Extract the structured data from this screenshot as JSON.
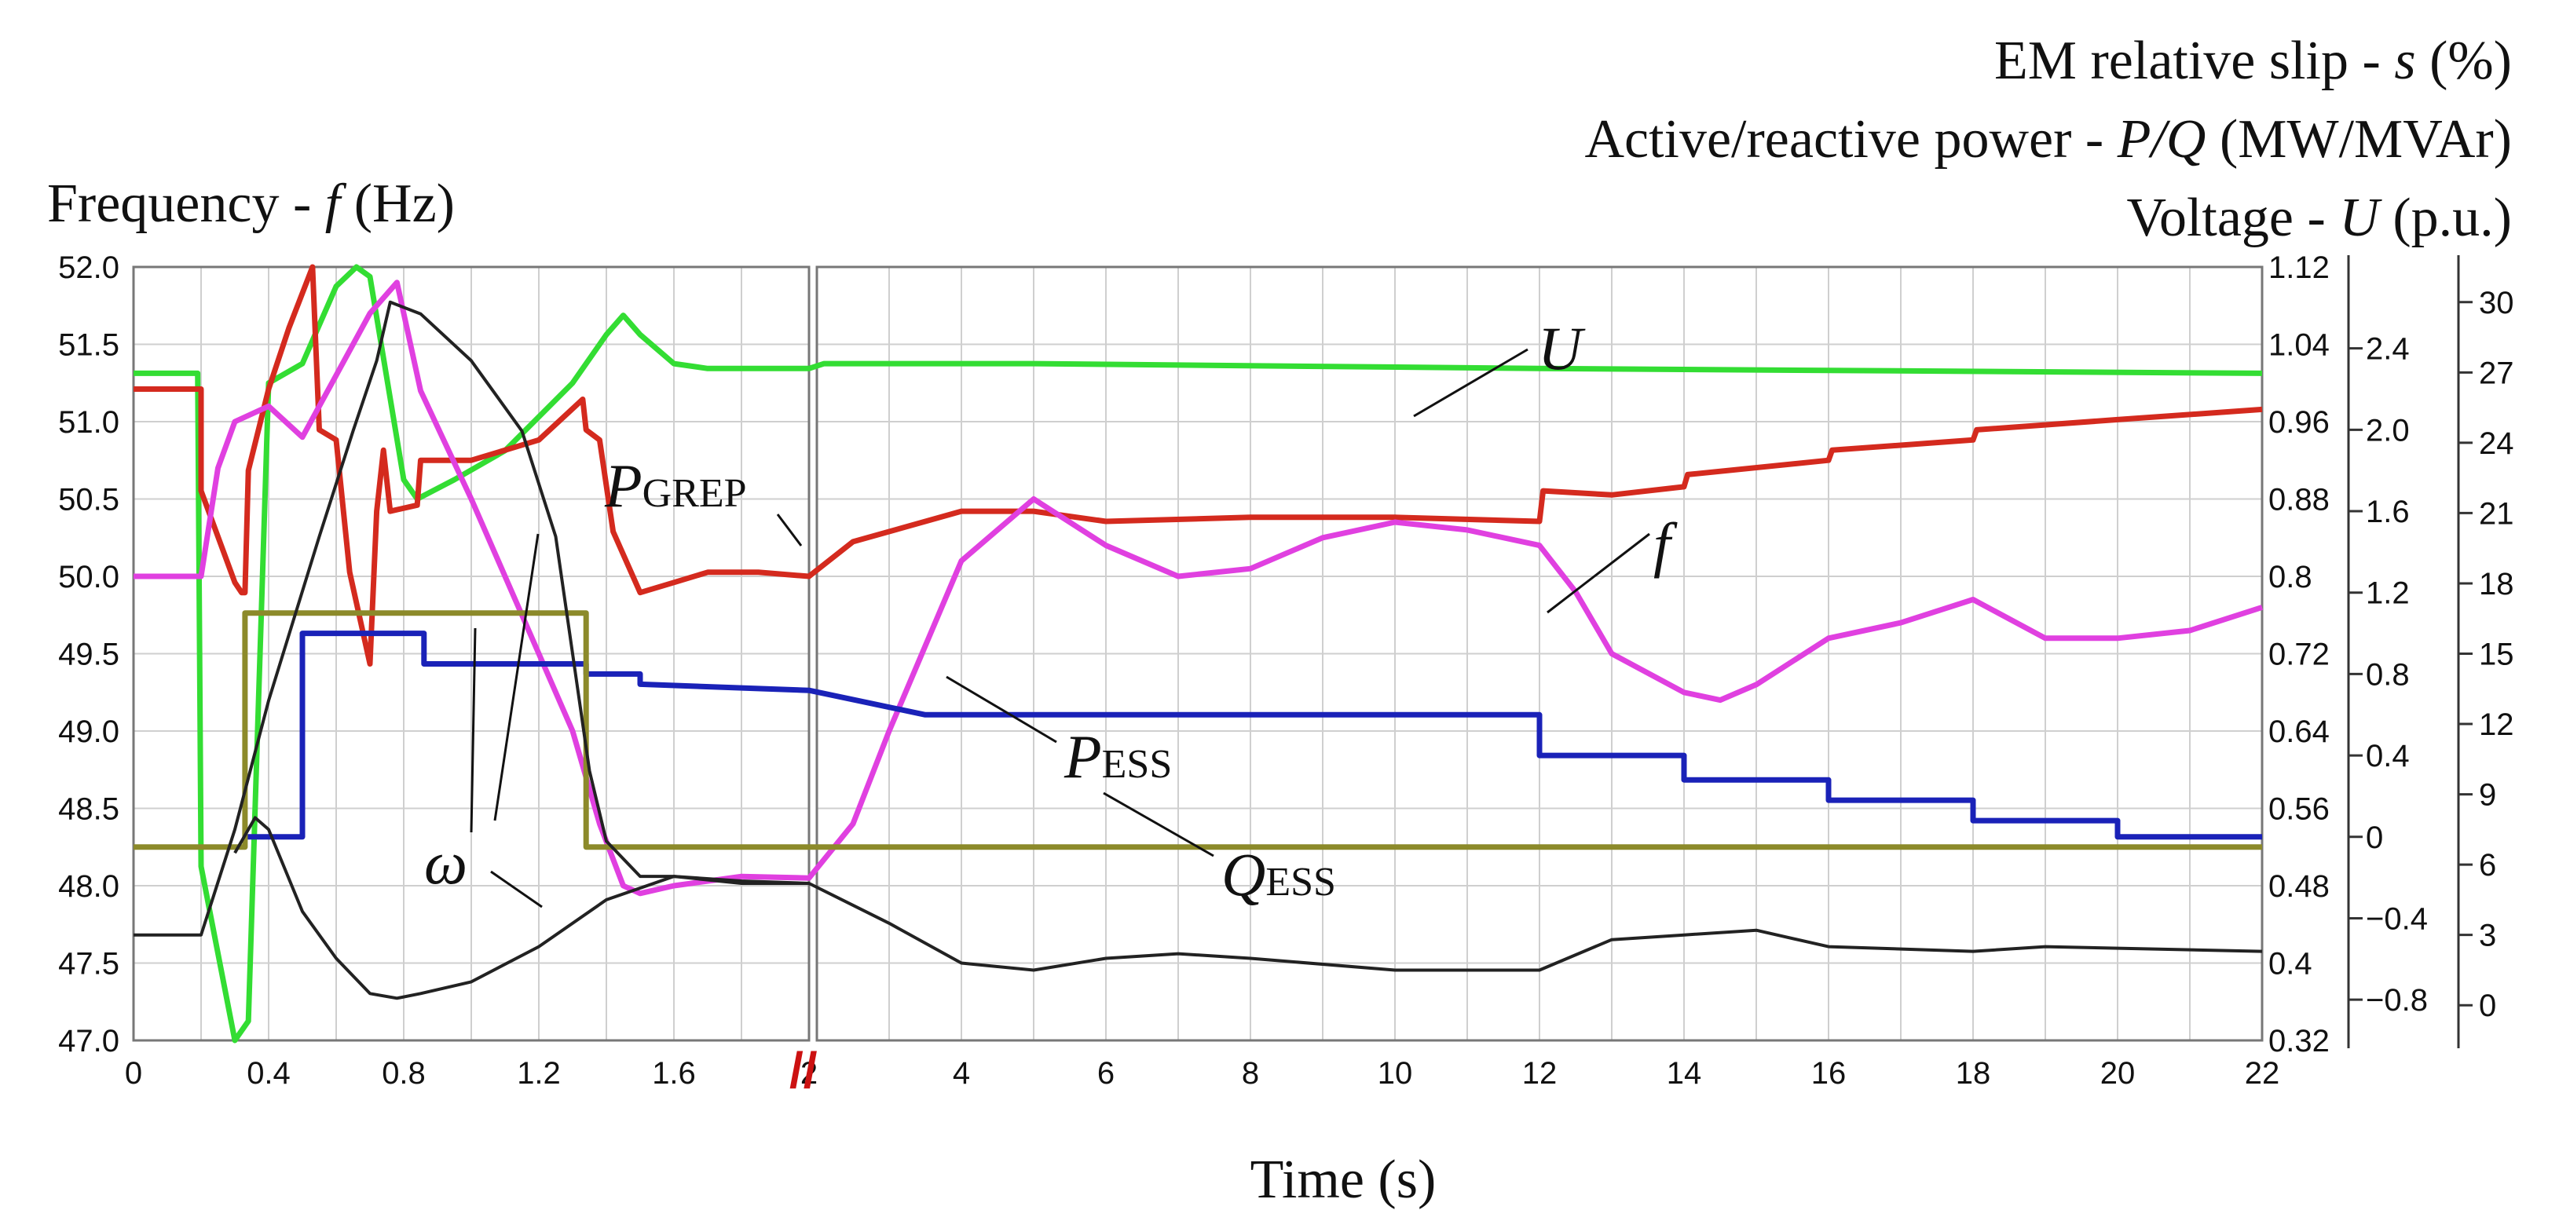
{
  "titles": {
    "slip": {
      "prefix": "EM relative slip - ",
      "symbol": "s",
      "unit": " (%)"
    },
    "power": {
      "prefix": "Active/reactive power - ",
      "symbol": "P/Q",
      "unit": " (MW/MVAr)"
    },
    "voltage": {
      "prefix": "Voltage - ",
      "symbol": "U",
      "unit": " (p.u.)"
    },
    "frequency": {
      "prefix": "Frequency - ",
      "symbol": "f",
      "unit": " (Hz)"
    }
  },
  "xlabel": "Time (s)",
  "annotations": {
    "U": "U",
    "f": "f",
    "omega": "ω",
    "PGREP": {
      "main": "P",
      "sub": "GREP"
    },
    "PESS": {
      "main": "P",
      "sub": "ESS"
    },
    "QESS": {
      "main": "Q",
      "sub": "ESS"
    }
  },
  "colors": {
    "U": "#33dd33",
    "PGREP": "#d42a1e",
    "f": "#e040e0",
    "PESS": "#1a22b8",
    "QESS": "#8c8a2a",
    "omega": "#222222",
    "break_mark": "#cc1111",
    "grid": "#cfcfcf"
  },
  "chart_data": {
    "type": "line",
    "x_axis": {
      "label": "Time (s)",
      "segment1": {
        "range": [
          0,
          2
        ],
        "ticks": [
          "0",
          "0.4",
          "0.8",
          "1.2",
          "1.6"
        ]
      },
      "segment2": {
        "range": [
          2,
          22
        ],
        "ticks": [
          "2",
          "4",
          "6",
          "8",
          "10",
          "12",
          "14",
          "16",
          "18",
          "20",
          "22"
        ]
      },
      "break_mark": "//"
    },
    "y_axes": {
      "frequency": {
        "label": "Frequency - f (Hz)",
        "range": [
          47.0,
          52.0
        ],
        "ticks": [
          "52.0",
          "51.5",
          "51.0",
          "50.5",
          "50.0",
          "49.5",
          "49.0",
          "48.5",
          "48.0",
          "47.5",
          "47.0"
        ]
      },
      "voltage": {
        "label": "Voltage - U (p.u.)",
        "range": [
          0.32,
          1.12
        ],
        "ticks": [
          "1.12",
          "1.04",
          "0.96",
          "0.88",
          "0.8",
          "0.72",
          "0.64",
          "0.56",
          "0.48",
          "0.4",
          "0.32"
        ]
      },
      "power": {
        "label": "Active/reactive power - P/Q (MW/MVAr)",
        "range": [
          -1.0,
          2.8
        ],
        "ticks": [
          "2.4",
          "2.0",
          "1.6",
          "1.2",
          "0.8",
          "0.4",
          "0",
          "−0.4",
          "−0.8"
        ]
      },
      "slip": {
        "label": "EM relative slip - s (%)",
        "range": [
          -1.5,
          31.5
        ],
        "ticks": [
          "30",
          "27",
          "24",
          "21",
          "18",
          "15",
          "12",
          "9",
          "6",
          "3",
          "0"
        ]
      }
    },
    "series": [
      {
        "name": "U",
        "axis": "voltage",
        "points": [
          [
            0,
            1.01
          ],
          [
            0.19,
            1.01
          ],
          [
            0.2,
            0.5
          ],
          [
            0.3,
            0.32
          ],
          [
            0.34,
            0.34
          ],
          [
            0.4,
            1.0
          ],
          [
            0.5,
            1.02
          ],
          [
            0.6,
            1.1
          ],
          [
            0.66,
            1.12
          ],
          [
            0.7,
            1.11
          ],
          [
            0.8,
            0.9
          ],
          [
            0.84,
            0.88
          ],
          [
            0.95,
            0.9
          ],
          [
            1.1,
            0.93
          ],
          [
            1.3,
            1.0
          ],
          [
            1.4,
            1.05
          ],
          [
            1.45,
            1.07
          ],
          [
            1.5,
            1.05
          ],
          [
            1.6,
            1.02
          ],
          [
            1.7,
            1.015
          ],
          [
            1.8,
            1.015
          ],
          [
            2,
            1.015
          ],
          [
            2.1,
            1.02
          ],
          [
            5,
            1.02
          ],
          [
            12,
            1.015
          ],
          [
            22,
            1.01
          ]
        ]
      },
      {
        "name": "PGREP",
        "axis": "power",
        "points": [
          [
            0,
            2.2
          ],
          [
            0.2,
            2.2
          ],
          [
            0.2,
            1.7
          ],
          [
            0.3,
            1.25
          ],
          [
            0.32,
            1.2
          ],
          [
            0.33,
            1.2
          ],
          [
            0.34,
            1.8
          ],
          [
            0.4,
            2.2
          ],
          [
            0.46,
            2.5
          ],
          [
            0.53,
            2.8
          ],
          [
            0.55,
            2.0
          ],
          [
            0.6,
            1.95
          ],
          [
            0.64,
            1.3
          ],
          [
            0.7,
            0.85
          ],
          [
            0.72,
            1.6
          ],
          [
            0.74,
            1.9
          ],
          [
            0.76,
            1.6
          ],
          [
            0.84,
            1.63
          ],
          [
            0.85,
            1.85
          ],
          [
            1.0,
            1.85
          ],
          [
            1.2,
            1.95
          ],
          [
            1.33,
            2.15
          ],
          [
            1.34,
            2.0
          ],
          [
            1.38,
            1.95
          ],
          [
            1.42,
            1.5
          ],
          [
            1.5,
            1.2
          ],
          [
            1.6,
            1.25
          ],
          [
            1.7,
            1.3
          ],
          [
            1.85,
            1.3
          ],
          [
            2.0,
            1.28
          ],
          [
            2.5,
            1.45
          ],
          [
            4,
            1.6
          ],
          [
            5,
            1.6
          ],
          [
            6,
            1.55
          ],
          [
            8,
            1.57
          ],
          [
            10,
            1.57
          ],
          [
            12,
            1.55
          ],
          [
            12.05,
            1.7
          ],
          [
            13,
            1.68
          ],
          [
            14,
            1.72
          ],
          [
            14.05,
            1.78
          ],
          [
            16,
            1.85
          ],
          [
            16.05,
            1.9
          ],
          [
            18,
            1.95
          ],
          [
            18.05,
            2.0
          ],
          [
            20,
            2.05
          ],
          [
            22,
            2.1
          ]
        ]
      },
      {
        "name": "f",
        "axis": "frequency",
        "points": [
          [
            0,
            50.0
          ],
          [
            0.2,
            50.0
          ],
          [
            0.25,
            50.7
          ],
          [
            0.3,
            51.0
          ],
          [
            0.4,
            51.1
          ],
          [
            0.5,
            50.9
          ],
          [
            0.6,
            51.3
          ],
          [
            0.7,
            51.7
          ],
          [
            0.78,
            51.9
          ],
          [
            0.85,
            51.2
          ],
          [
            1.0,
            50.5
          ],
          [
            1.1,
            50.0
          ],
          [
            1.2,
            49.5
          ],
          [
            1.3,
            49.0
          ],
          [
            1.38,
            48.4
          ],
          [
            1.45,
            48.0
          ],
          [
            1.5,
            47.95
          ],
          [
            1.6,
            48.0
          ],
          [
            1.8,
            48.06
          ],
          [
            2.0,
            48.05
          ],
          [
            2.5,
            48.4
          ],
          [
            3,
            49.0
          ],
          [
            4,
            50.1
          ],
          [
            5,
            50.5
          ],
          [
            6,
            50.2
          ],
          [
            7,
            50.0
          ],
          [
            8,
            50.05
          ],
          [
            9,
            50.25
          ],
          [
            10,
            50.35
          ],
          [
            11,
            50.3
          ],
          [
            12,
            50.2
          ],
          [
            12.5,
            49.9
          ],
          [
            13,
            49.5
          ],
          [
            14,
            49.25
          ],
          [
            14.5,
            49.2
          ],
          [
            15,
            49.3
          ],
          [
            16,
            49.6
          ],
          [
            17,
            49.7
          ],
          [
            18,
            49.85
          ],
          [
            19,
            49.6
          ],
          [
            20,
            49.6
          ],
          [
            21,
            49.65
          ],
          [
            22,
            49.8
          ]
        ]
      },
      {
        "name": "PESS",
        "axis": "power",
        "points": [
          [
            0.33,
            0.0
          ],
          [
            0.5,
            0.0
          ],
          [
            0.5,
            1.0
          ],
          [
            0.86,
            1.0
          ],
          [
            0.86,
            0.85
          ],
          [
            1.34,
            0.85
          ],
          [
            1.34,
            0.8
          ],
          [
            1.5,
            0.8
          ],
          [
            1.5,
            0.75
          ],
          [
            2.0,
            0.72
          ],
          [
            3.5,
            0.6
          ],
          [
            12,
            0.6
          ],
          [
            12,
            0.4
          ],
          [
            14,
            0.4
          ],
          [
            14,
            0.28
          ],
          [
            16,
            0.28
          ],
          [
            16,
            0.18
          ],
          [
            18,
            0.18
          ],
          [
            18,
            0.08
          ],
          [
            20,
            0.08
          ],
          [
            20,
            0.0
          ],
          [
            22,
            0.0
          ]
        ]
      },
      {
        "name": "QESS",
        "axis": "power",
        "points": [
          [
            0,
            -0.05
          ],
          [
            0.33,
            -0.05
          ],
          [
            0.33,
            1.1
          ],
          [
            1.34,
            1.1
          ],
          [
            1.34,
            -0.05
          ],
          [
            2.0,
            -0.05
          ],
          [
            22,
            -0.05
          ]
        ]
      },
      {
        "name": "omega",
        "axis": "slip",
        "points": [
          [
            0,
            3.0
          ],
          [
            0.2,
            3.0
          ],
          [
            0.3,
            7.5
          ],
          [
            0.4,
            13.0
          ],
          [
            0.55,
            20.0
          ],
          [
            0.65,
            24.5
          ],
          [
            0.72,
            27.5
          ],
          [
            0.76,
            30.0
          ],
          [
            0.85,
            29.5
          ],
          [
            1.0,
            27.5
          ],
          [
            1.15,
            24.5
          ],
          [
            1.25,
            20.0
          ],
          [
            1.3,
            15.0
          ],
          [
            1.35,
            10.0
          ],
          [
            1.4,
            7.0
          ],
          [
            1.5,
            5.5
          ],
          [
            1.6,
            5.5
          ],
          [
            1.8,
            5.2
          ],
          [
            2.0,
            5.2
          ],
          [
            3,
            3.5
          ],
          [
            4,
            1.8
          ],
          [
            5,
            1.5
          ],
          [
            6,
            2.0
          ],
          [
            7,
            2.2
          ],
          [
            8,
            2.0
          ],
          [
            10,
            1.5
          ],
          [
            12,
            1.5
          ],
          [
            13,
            2.8
          ],
          [
            14,
            3.0
          ],
          [
            15,
            3.2
          ],
          [
            16,
            2.5
          ],
          [
            18,
            2.3
          ],
          [
            19,
            2.5
          ],
          [
            22,
            2.3
          ]
        ]
      },
      {
        "axis": "slip",
        "points": [
          [
            0.3,
            6.5
          ],
          [
            0.36,
            8.0
          ],
          [
            0.4,
            7.5
          ],
          [
            0.5,
            4.0
          ],
          [
            0.6,
            2.0
          ],
          [
            0.7,
            0.5
          ],
          [
            0.78,
            0.3
          ],
          [
            0.85,
            0.5
          ],
          [
            1.0,
            1.0
          ],
          [
            1.2,
            2.5
          ],
          [
            1.4,
            4.5
          ],
          [
            1.6,
            5.5
          ],
          [
            1.8,
            5.3
          ],
          [
            2.0,
            5.2
          ]
        ]
      }
    ]
  }
}
